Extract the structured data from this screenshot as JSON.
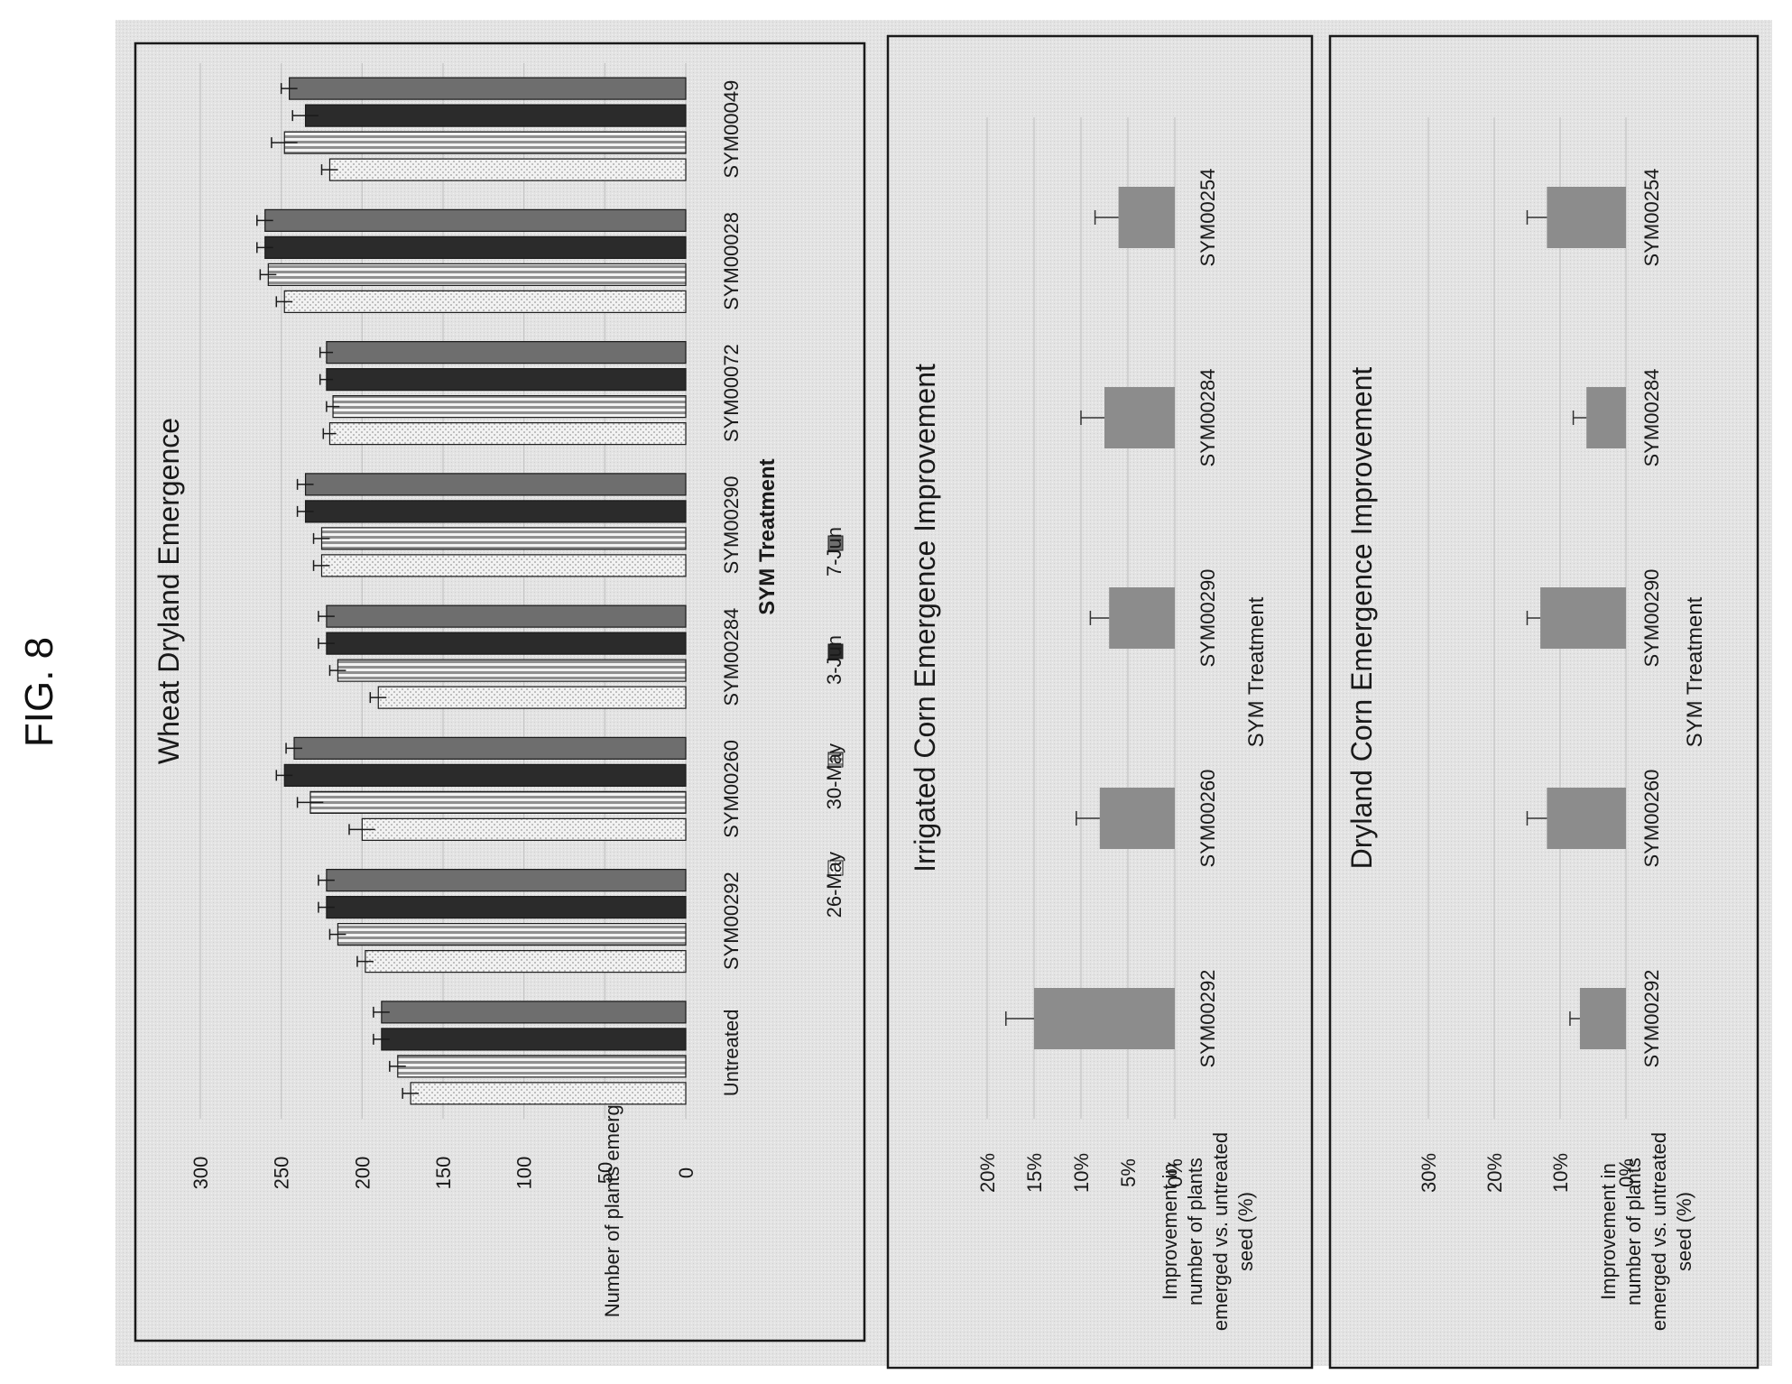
{
  "figure_label": "FIG. 8",
  "chart_data": [
    {
      "type": "bar",
      "title": "Wheat Dryland Emergence",
      "xlabel": "SYM Treatment",
      "ylabel": "Number of plants emerged",
      "ylim": [
        0,
        300
      ],
      "yticks": [
        "0",
        "50",
        "100",
        "150",
        "200",
        "250",
        "300"
      ],
      "grid": true,
      "legend_position": "bottom",
      "categories": [
        "Untreated",
        "SYM00292",
        "SYM00260",
        "SYM00284",
        "SYM00290",
        "SYM00072",
        "SYM00028",
        "SYM00049"
      ],
      "series": [
        {
          "name": "26-May",
          "color": "#eaeaea",
          "values": [
            170,
            198,
            200,
            190,
            225,
            220,
            248,
            220
          ],
          "errors": [
            5,
            5,
            8,
            5,
            5,
            4,
            5,
            5
          ]
        },
        {
          "name": "30-May",
          "color": "#bdbdbd",
          "values": [
            178,
            215,
            232,
            215,
            225,
            218,
            258,
            248
          ],
          "errors": [
            5,
            5,
            8,
            5,
            5,
            4,
            5,
            8
          ]
        },
        {
          "name": "3-Jun",
          "color": "#2b2b2b",
          "values": [
            188,
            222,
            248,
            222,
            235,
            222,
            260,
            235
          ],
          "errors": [
            5,
            5,
            5,
            5,
            5,
            4,
            5,
            8
          ]
        },
        {
          "name": "7-Jun",
          "color": "#6e6e6e",
          "values": [
            188,
            222,
            242,
            222,
            235,
            222,
            260,
            245
          ],
          "errors": [
            5,
            5,
            5,
            5,
            5,
            4,
            5,
            5
          ]
        }
      ]
    },
    {
      "type": "bar",
      "title": "Irrigated Corn Emergence Improvement",
      "xlabel": "SYM Treatment",
      "ylabel": "Improvement in number of plants emerged vs. untreated seed (%)",
      "ylim": [
        0,
        20
      ],
      "yticks": [
        "0%",
        "5%",
        "10%",
        "15%",
        "20%"
      ],
      "grid": true,
      "categories": [
        "SYM00292",
        "SYM00260",
        "SYM00290",
        "SYM00284",
        "SYM00254"
      ],
      "series": [
        {
          "color": "#8c8c8c",
          "values": [
            15,
            8,
            7,
            7.5,
            6
          ],
          "errors": [
            3,
            2.5,
            2,
            2.5,
            2.5
          ]
        }
      ]
    },
    {
      "type": "bar",
      "title": "Dryland Corn Emergence Improvement",
      "xlabel": "SYM Treatment",
      "ylabel": "Improvement in number of plants emerged vs. untreated seed (%)",
      "ylim": [
        0,
        30
      ],
      "yticks": [
        "0%",
        "10%",
        "20%",
        "30%"
      ],
      "grid": true,
      "categories": [
        "SYM00292",
        "SYM00260",
        "SYM00290",
        "SYM00284",
        "SYM00254"
      ],
      "series": [
        {
          "color": "#8c8c8c",
          "values": [
            7,
            12,
            13,
            6,
            12
          ],
          "errors": [
            1.5,
            3,
            2,
            2,
            3
          ]
        }
      ]
    }
  ]
}
